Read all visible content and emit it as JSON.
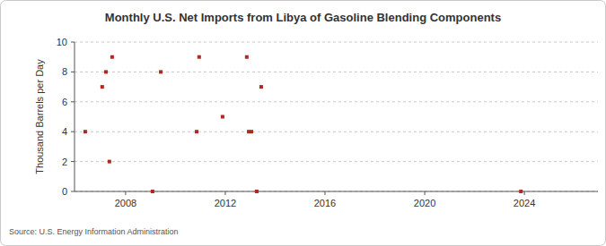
{
  "chart_data": {
    "type": "scatter",
    "title": "Monthly U.S. Net Imports from Libya of Gasoline Blending Components",
    "y_label": "Thousand Barrels per Day",
    "source": "Source: U.S. Energy Information Administration",
    "x": [
      2006.38,
      2007.06,
      2007.21,
      2007.35,
      2007.46,
      2009.08,
      2009.41,
      2010.85,
      2010.95,
      2011.89,
      2012.86,
      2012.94,
      2013.05,
      2013.26,
      2013.44,
      2023.86
    ],
    "values": [
      4,
      7,
      8,
      2,
      9,
      0,
      8,
      4,
      9,
      5,
      9,
      4,
      4,
      0,
      7,
      0
    ],
    "color": "#b0281f",
    "marker": "square",
    "xlim": [
      2005.95,
      2026.95
    ],
    "xticks": [
      2008,
      2012,
      2016,
      2020,
      2024
    ],
    "ylim": [
      0,
      10
    ],
    "yticks": [
      0,
      2,
      4,
      6,
      8,
      10
    ],
    "grid": true
  }
}
